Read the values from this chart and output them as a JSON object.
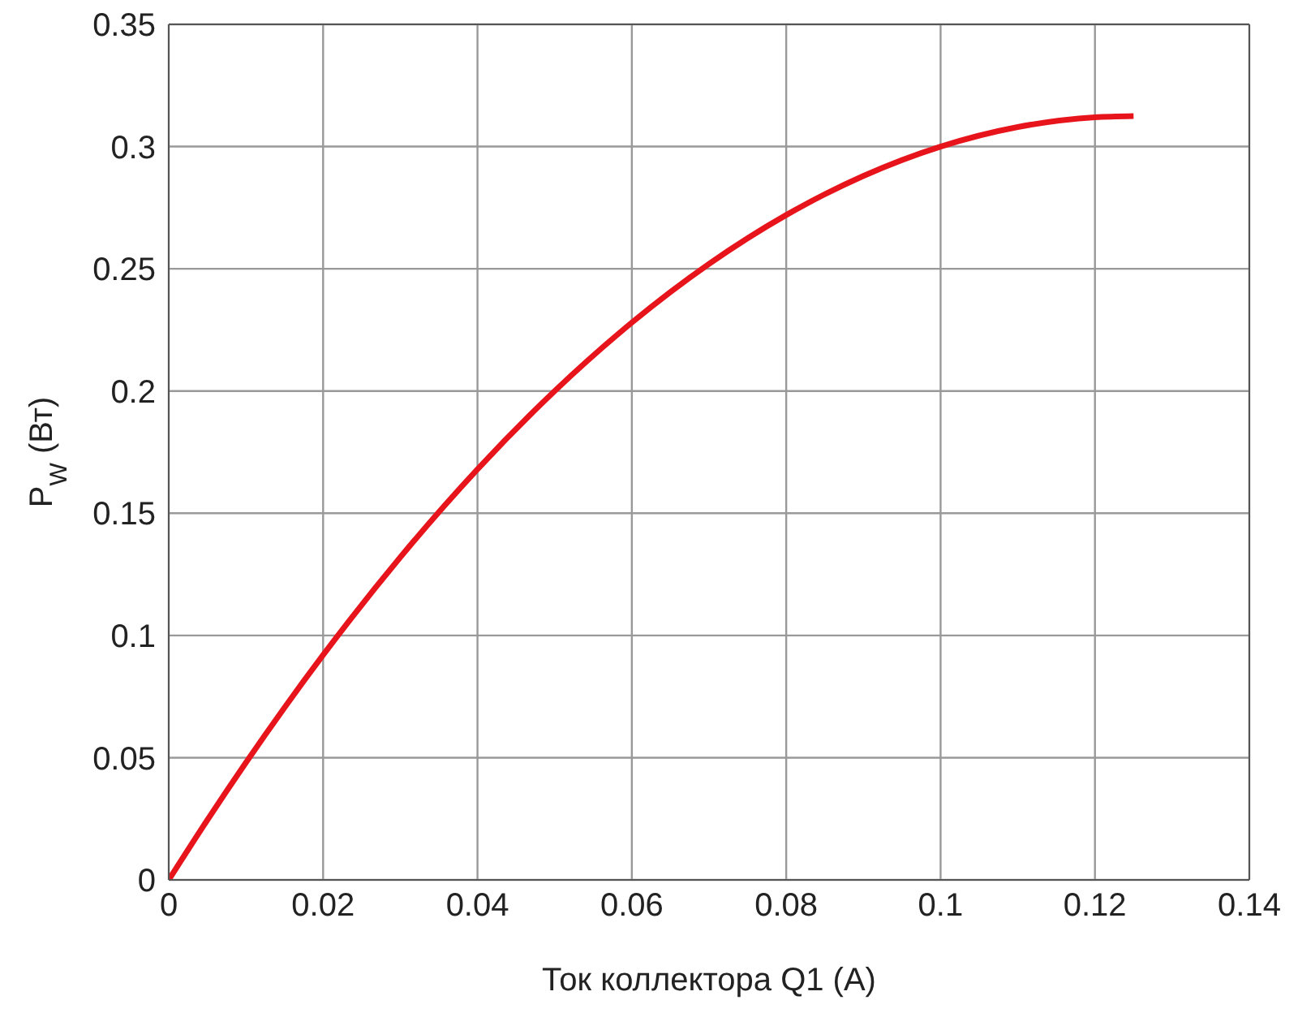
{
  "chart_data": {
    "type": "line",
    "xlabel": "Ток коллектора Q1 (A)",
    "ylabel": "P$_{W}$ (Вт)",
    "x": [
      0,
      0.005,
      0.01,
      0.015,
      0.02,
      0.03,
      0.04,
      0.05,
      0.06,
      0.07,
      0.08,
      0.09,
      0.1,
      0.11,
      0.12,
      0.125
    ],
    "series": [
      {
        "color": "#e8141c",
        "values": [
          0,
          0.0245,
          0.048,
          0.0705,
          0.092,
          0.132,
          0.168,
          0.2,
          0.228,
          0.252,
          0.272,
          0.288,
          0.3,
          0.308,
          0.312,
          0.3125
        ]
      }
    ],
    "xlim": [
      0,
      0.14
    ],
    "xticks": [
      0,
      0.02,
      0.04,
      0.06,
      0.08,
      0.1,
      0.12,
      0.14
    ],
    "ylim": [
      0,
      0.35
    ],
    "yticks": [
      0,
      0.05,
      0.1,
      0.15,
      0.2,
      0.25,
      0.3,
      0.35
    ],
    "grid": true,
    "marker": "none",
    "line_style": "solid"
  }
}
